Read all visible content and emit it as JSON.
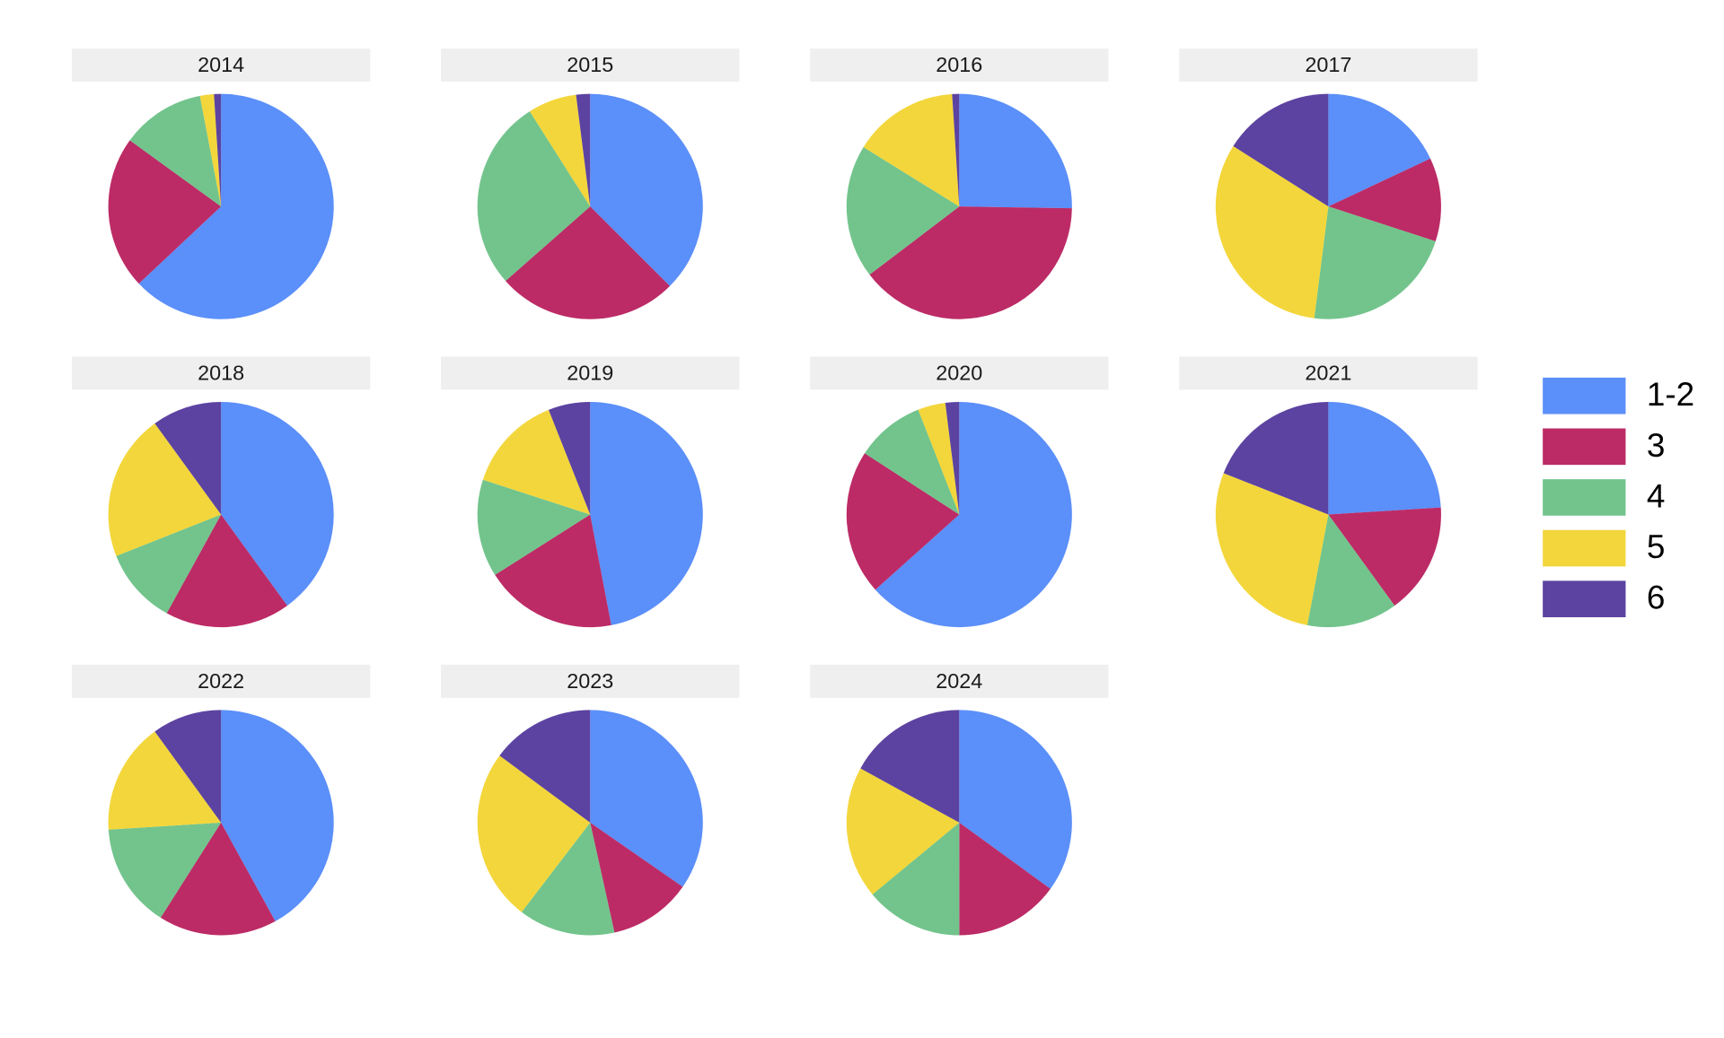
{
  "chart_data": {
    "type": "pie",
    "categories": [
      "1-2",
      "3",
      "4",
      "5",
      "6"
    ],
    "colors": [
      "#5B8FF9",
      "#BC2B66",
      "#72C48C",
      "#F3D63B",
      "#5C43A1"
    ],
    "legend_position": "right",
    "panels": [
      {
        "title": "2014",
        "values": [
          63,
          22,
          12,
          2,
          1
        ]
      },
      {
        "title": "2015",
        "values": [
          37.5,
          26,
          27.5,
          7,
          2
        ]
      },
      {
        "title": "2016",
        "values": [
          25,
          39,
          19,
          15,
          1
        ]
      },
      {
        "title": "2017",
        "values": [
          18,
          12,
          22,
          32,
          16
        ]
      },
      {
        "title": "2018",
        "values": [
          40,
          18,
          11,
          21,
          10
        ]
      },
      {
        "title": "2019",
        "values": [
          47,
          19,
          14,
          14,
          6
        ]
      },
      {
        "title": "2020",
        "values": [
          64,
          21,
          10,
          4,
          2
        ]
      },
      {
        "title": "2021",
        "values": [
          24,
          16,
          13,
          28,
          19
        ]
      },
      {
        "title": "2022",
        "values": [
          42,
          17,
          15,
          16,
          10
        ]
      },
      {
        "title": "2023",
        "values": [
          35,
          12,
          14,
          25,
          15
        ]
      },
      {
        "title": "2024",
        "values": [
          35,
          15,
          14,
          19,
          17
        ]
      }
    ]
  }
}
